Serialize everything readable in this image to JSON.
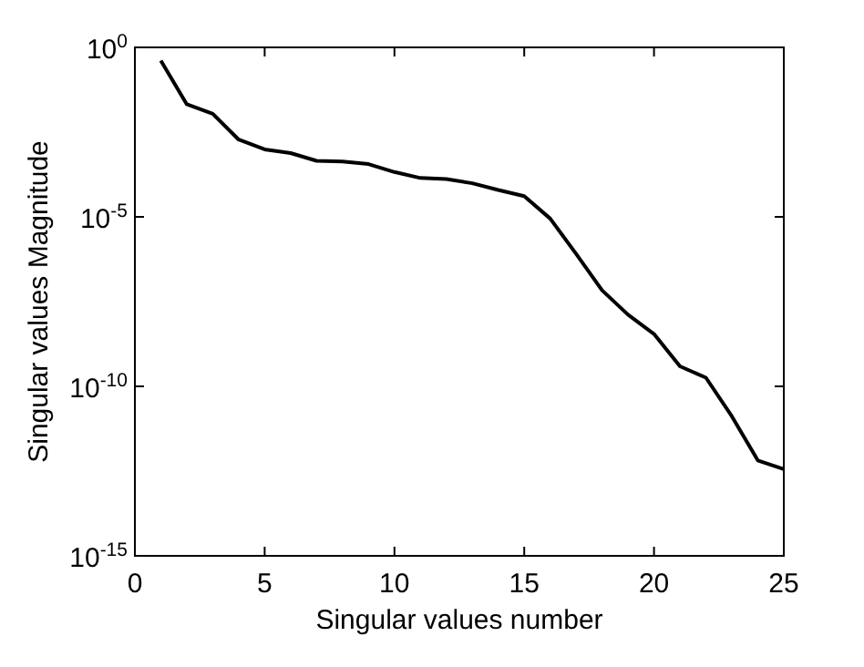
{
  "chart_data": {
    "type": "line",
    "xlabel": "Singular values number",
    "ylabel": "Singular values Magnitude",
    "log": "y",
    "grid": false,
    "marker": "none",
    "line_style": "solid",
    "x": [
      1,
      2,
      3,
      4,
      5,
      6,
      7,
      8,
      9,
      10,
      11,
      12,
      13,
      14,
      15,
      16,
      17,
      18,
      19,
      20,
      21,
      22,
      23,
      24,
      25
    ],
    "series": [
      {
        "color": "#000000",
        "values": [
          0.41,
          0.021,
          0.011,
          0.0019,
          0.00098,
          0.00076,
          0.00045,
          0.00043,
          0.00036,
          0.00021,
          0.00014,
          0.00013,
          9.8e-05,
          6.2e-05,
          4.1e-05,
          8.9e-06,
          8.1e-07,
          6.8e-08,
          1.3e-08,
          3.5e-09,
          3.9e-10,
          1.8e-10,
          1.3e-11,
          6.5e-13,
          3.6e-13
        ]
      }
    ],
    "xlim": [
      0,
      25
    ],
    "xticks": [
      0,
      5,
      10,
      15,
      20,
      25
    ],
    "ylim": [
      1e-15,
      1
    ],
    "yticks": [
      {
        "value": 1e-15,
        "label": "10$^{-15}$"
      },
      {
        "value": 1e-10,
        "label": "10$^{-10}$"
      },
      {
        "value": 1e-05,
        "label": "10$^{-5}$"
      },
      {
        "value": 1,
        "label": "10$^{0}$"
      }
    ]
  }
}
